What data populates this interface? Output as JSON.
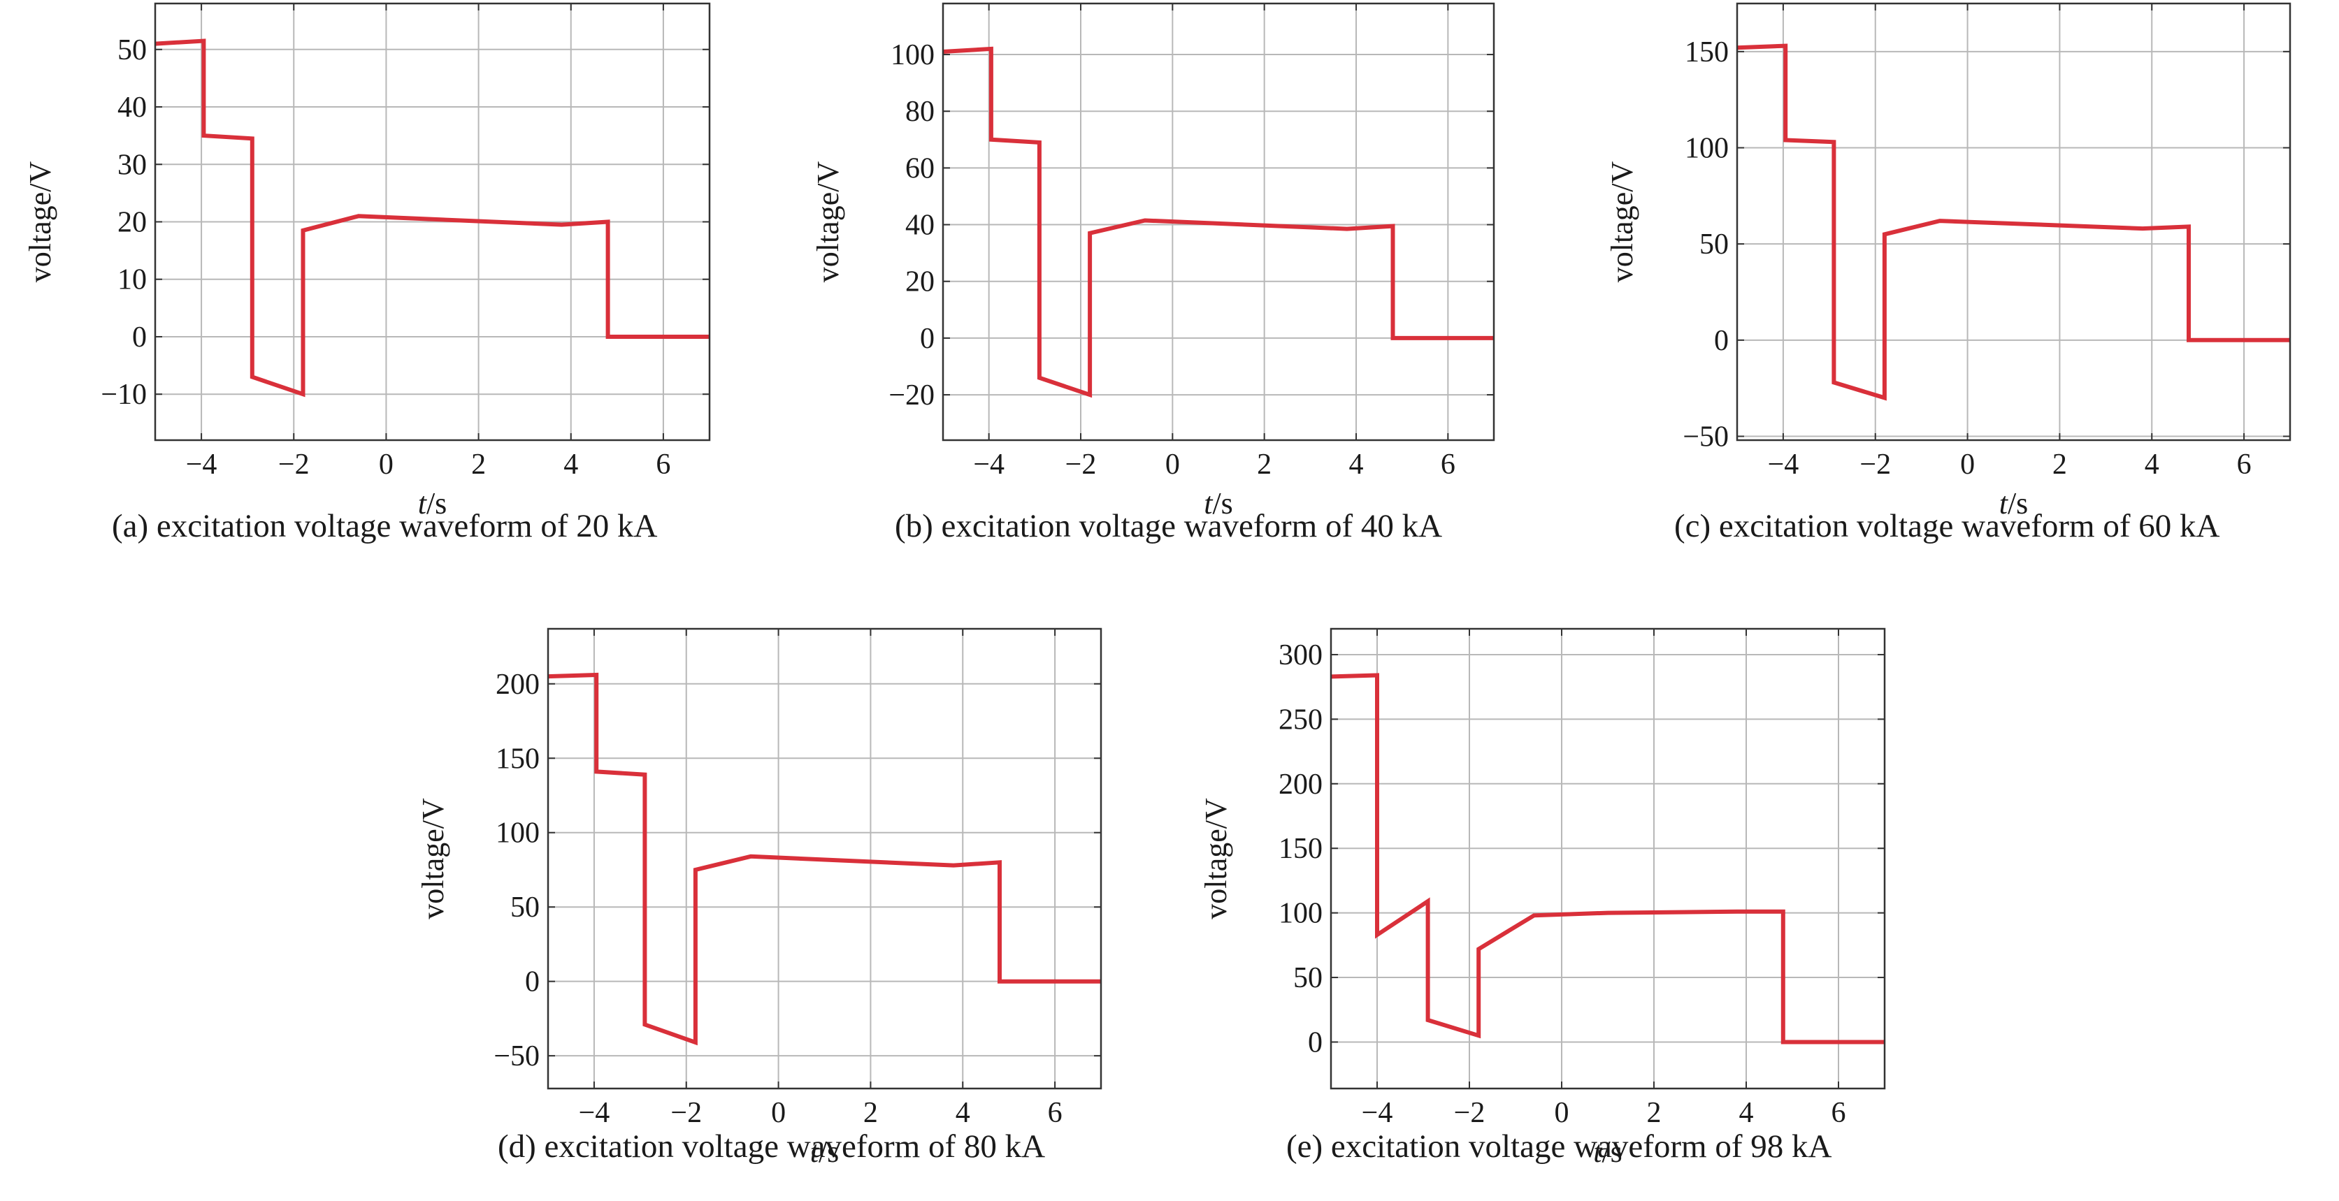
{
  "colors": {
    "line": "#d9303a",
    "grid": "#b8b8b8",
    "frame": "#333333",
    "text": "#1a1a1a"
  },
  "chart_data": [
    {
      "id": "a",
      "type": "line",
      "caption": "(a) excitation voltage waveform of 20 kA",
      "xlabel_var": "t",
      "xlabel_unit": "/s",
      "ylabel": "voltage/V",
      "xlim": [
        -5,
        7
      ],
      "ylim": [
        -18,
        58
      ],
      "xticks": [
        -4,
        -2,
        0,
        2,
        4,
        6
      ],
      "xtick_labels": [
        "−4",
        "−2",
        "0",
        "2",
        "4",
        "6"
      ],
      "yticks": [
        -10,
        0,
        10,
        20,
        30,
        40,
        50
      ],
      "ytick_labels": [
        "−10",
        "0",
        "10",
        "20",
        "30",
        "40",
        "50"
      ],
      "grid": true,
      "series": [
        {
          "x": [
            -5,
            -3.95,
            -3.95,
            -2.9,
            -2.9,
            -1.8,
            -1.8,
            -0.6,
            3.8,
            4.8,
            4.8,
            7
          ],
          "y": [
            51,
            51.5,
            35,
            34.5,
            -7,
            -10,
            18.5,
            21,
            19.5,
            20,
            0,
            0
          ]
        }
      ]
    },
    {
      "id": "b",
      "type": "line",
      "caption": "(b) excitation voltage waveform of 40 kA",
      "xlabel_var": "t",
      "xlabel_unit": "/s",
      "ylabel": "voltage/V",
      "xlim": [
        -5,
        7
      ],
      "ylim": [
        -36,
        118
      ],
      "xticks": [
        -4,
        -2,
        0,
        2,
        4,
        6
      ],
      "xtick_labels": [
        "−4",
        "−2",
        "0",
        "2",
        "4",
        "6"
      ],
      "yticks": [
        -20,
        0,
        20,
        40,
        60,
        80,
        100
      ],
      "ytick_labels": [
        "−20",
        "0",
        "20",
        "40",
        "60",
        "80",
        "100"
      ],
      "grid": true,
      "series": [
        {
          "x": [
            -5,
            -3.95,
            -3.95,
            -2.9,
            -2.9,
            -1.8,
            -1.8,
            -0.6,
            3.8,
            4.8,
            4.8,
            7
          ],
          "y": [
            101,
            102,
            70,
            69,
            -14,
            -20,
            37,
            41.5,
            38.5,
            39.5,
            0,
            0
          ]
        }
      ]
    },
    {
      "id": "c",
      "type": "line",
      "caption": "(c) excitation voltage waveform of 60 kA",
      "xlabel_var": "t",
      "xlabel_unit": "/s",
      "ylabel": "voltage/V",
      "xlim": [
        -5,
        7
      ],
      "ylim": [
        -52,
        175
      ],
      "xticks": [
        -4,
        -2,
        0,
        2,
        4,
        6
      ],
      "xtick_labels": [
        "−4",
        "−2",
        "0",
        "2",
        "4",
        "6"
      ],
      "yticks": [
        -50,
        0,
        50,
        100,
        150
      ],
      "ytick_labels": [
        "−50",
        "0",
        "50",
        "100",
        "150"
      ],
      "grid": true,
      "series": [
        {
          "x": [
            -5,
            -3.95,
            -3.95,
            -2.9,
            -2.9,
            -1.8,
            -1.8,
            -0.6,
            3.8,
            4.8,
            4.8,
            7
          ],
          "y": [
            152,
            153,
            104,
            103,
            -22,
            -30,
            55,
            62,
            58,
            59,
            0,
            0
          ]
        }
      ]
    },
    {
      "id": "d",
      "type": "line",
      "caption": "(d) excitation voltage waveform of 80 kA",
      "xlabel_var": "t",
      "xlabel_unit": "/s",
      "ylabel": "voltage/V",
      "xlim": [
        -5,
        7
      ],
      "ylim": [
        -72,
        237
      ],
      "xticks": [
        -4,
        -2,
        0,
        2,
        4,
        6
      ],
      "xtick_labels": [
        "−4",
        "−2",
        "0",
        "2",
        "4",
        "6"
      ],
      "yticks": [
        -50,
        0,
        50,
        100,
        150,
        200
      ],
      "ytick_labels": [
        "−50",
        "0",
        "50",
        "100",
        "150",
        "200"
      ],
      "grid": true,
      "series": [
        {
          "x": [
            -5,
            -3.95,
            -3.95,
            -2.9,
            -2.9,
            -1.8,
            -1.8,
            -0.6,
            3.8,
            4.8,
            4.8,
            7
          ],
          "y": [
            205,
            206,
            141,
            139,
            -29,
            -41,
            75,
            84,
            78,
            80,
            0,
            0
          ]
        }
      ]
    },
    {
      "id": "e",
      "type": "line",
      "caption": "(e) excitation voltage waveform of 98 kA",
      "xlabel_var": "t",
      "xlabel_unit": "/s",
      "ylabel": "voltage/V",
      "xlim": [
        -5,
        7
      ],
      "ylim": [
        -36,
        320
      ],
      "xticks": [
        -4,
        -2,
        0,
        2,
        4,
        6
      ],
      "xtick_labels": [
        "−4",
        "−2",
        "0",
        "2",
        "4",
        "6"
      ],
      "yticks": [
        0,
        50,
        100,
        150,
        200,
        250,
        300
      ],
      "ytick_labels": [
        "0",
        "50",
        "100",
        "150",
        "200",
        "250",
        "300"
      ],
      "grid": true,
      "series": [
        {
          "x": [
            -5,
            -4,
            -4,
            -2.9,
            -2.9,
            -1.8,
            -1.8,
            -0.6,
            1,
            3.8,
            4.8,
            4.8,
            7
          ],
          "y": [
            283,
            284,
            83,
            109,
            17,
            5,
            72,
            98,
            100,
            101,
            101,
            0,
            0
          ]
        }
      ]
    }
  ]
}
